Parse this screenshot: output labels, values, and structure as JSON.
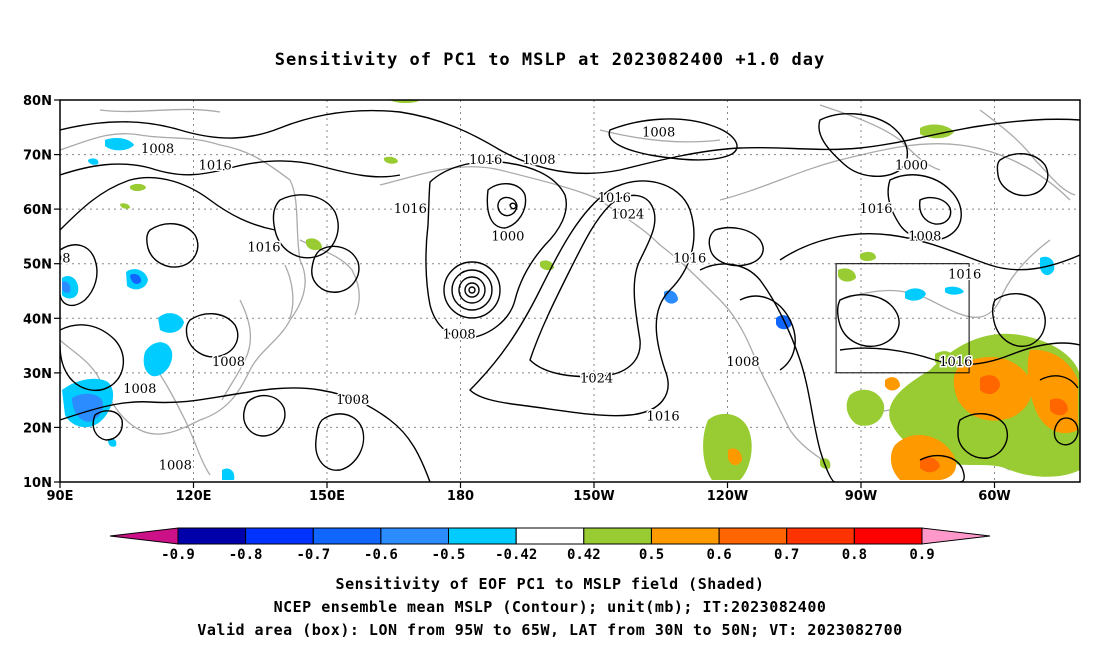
{
  "title": "Sensitivity of PC1 to MSLP at 2023082400 +1.0 day",
  "map": {
    "lon_ticks": [
      "90E",
      "120E",
      "150E",
      "180",
      "150W",
      "120W",
      "90W",
      "60W"
    ],
    "lat_ticks": [
      "80N",
      "70N",
      "60N",
      "50N",
      "40N",
      "30N",
      "20N",
      "10N"
    ],
    "contour_labels": [
      {
        "text": "1008",
        "lon": 112,
        "lat": 71
      },
      {
        "text": "1016",
        "lon": 125,
        "lat": 68
      },
      {
        "text": "1016",
        "lon": 136,
        "lat": 53
      },
      {
        "text": "1016",
        "lon": 169,
        "lat": 60
      },
      {
        "text": "1016",
        "lon": 186,
        "lat": 69
      },
      {
        "text": "1008",
        "lon": 198,
        "lat": 69
      },
      {
        "text": "1000",
        "lon": 191,
        "lat": 55
      },
      {
        "text": "1016",
        "lon": 215,
        "lat": 62
      },
      {
        "text": "1024",
        "lon": 218,
        "lat": 59
      },
      {
        "text": "1008",
        "lon": 225,
        "lat": 74
      },
      {
        "text": "1016",
        "lon": 232,
        "lat": 51
      },
      {
        "text": "1000",
        "lon": 282,
        "lat": 68
      },
      {
        "text": "1016",
        "lon": 274,
        "lat": 60
      },
      {
        "text": "1008",
        "lon": 285,
        "lat": 55
      },
      {
        "text": "1016",
        "lon": 294,
        "lat": 48
      },
      {
        "text": "1016",
        "lon": 292,
        "lat": 32
      },
      {
        "text": "1008",
        "lon": 244,
        "lat": 32
      },
      {
        "text": "1024",
        "lon": 211,
        "lat": 29
      },
      {
        "text": "1016",
        "lon": 226,
        "lat": 22
      },
      {
        "text": "1008",
        "lon": 180,
        "lat": 37
      },
      {
        "text": "1008",
        "lon": 128,
        "lat": 32
      },
      {
        "text": "1008",
        "lon": 108,
        "lat": 27
      },
      {
        "text": "1008",
        "lon": 156,
        "lat": 25
      },
      {
        "text": "1008",
        "lon": 116,
        "lat": 13
      },
      {
        "text": "08",
        "lon": 90.5,
        "lat": 51
      }
    ],
    "valid_box": {
      "lon_min": 265,
      "lon_max": 295,
      "lat_min": 30,
      "lat_max": 50
    }
  },
  "colorbar": {
    "labels": [
      "-0.9",
      "-0.8",
      "-0.7",
      "-0.6",
      "-0.5",
      "-0.42",
      "0.42",
      "0.5",
      "0.6",
      "0.7",
      "0.8",
      "0.9"
    ],
    "colors": [
      "#0000aa",
      "#0033ff",
      "#1166ff",
      "#2a8cff",
      "#00ccff",
      "#ffffff",
      "#99cc33",
      "#ff9900",
      "#ff6600",
      "#ff3300",
      "#ff0000"
    ],
    "low_color": "#cc1188",
    "high_color": "#ff99cc"
  },
  "footer": {
    "line1": "Sensitivity of EOF PC1 to MSLP field (Shaded)",
    "line2": "NCEP ensemble mean MSLP (Contour); unit(mb); IT:2023082400",
    "line3": "Valid area (box): LON from 95W to 65W, LAT from 30N to 50N; VT: 2023082700"
  }
}
